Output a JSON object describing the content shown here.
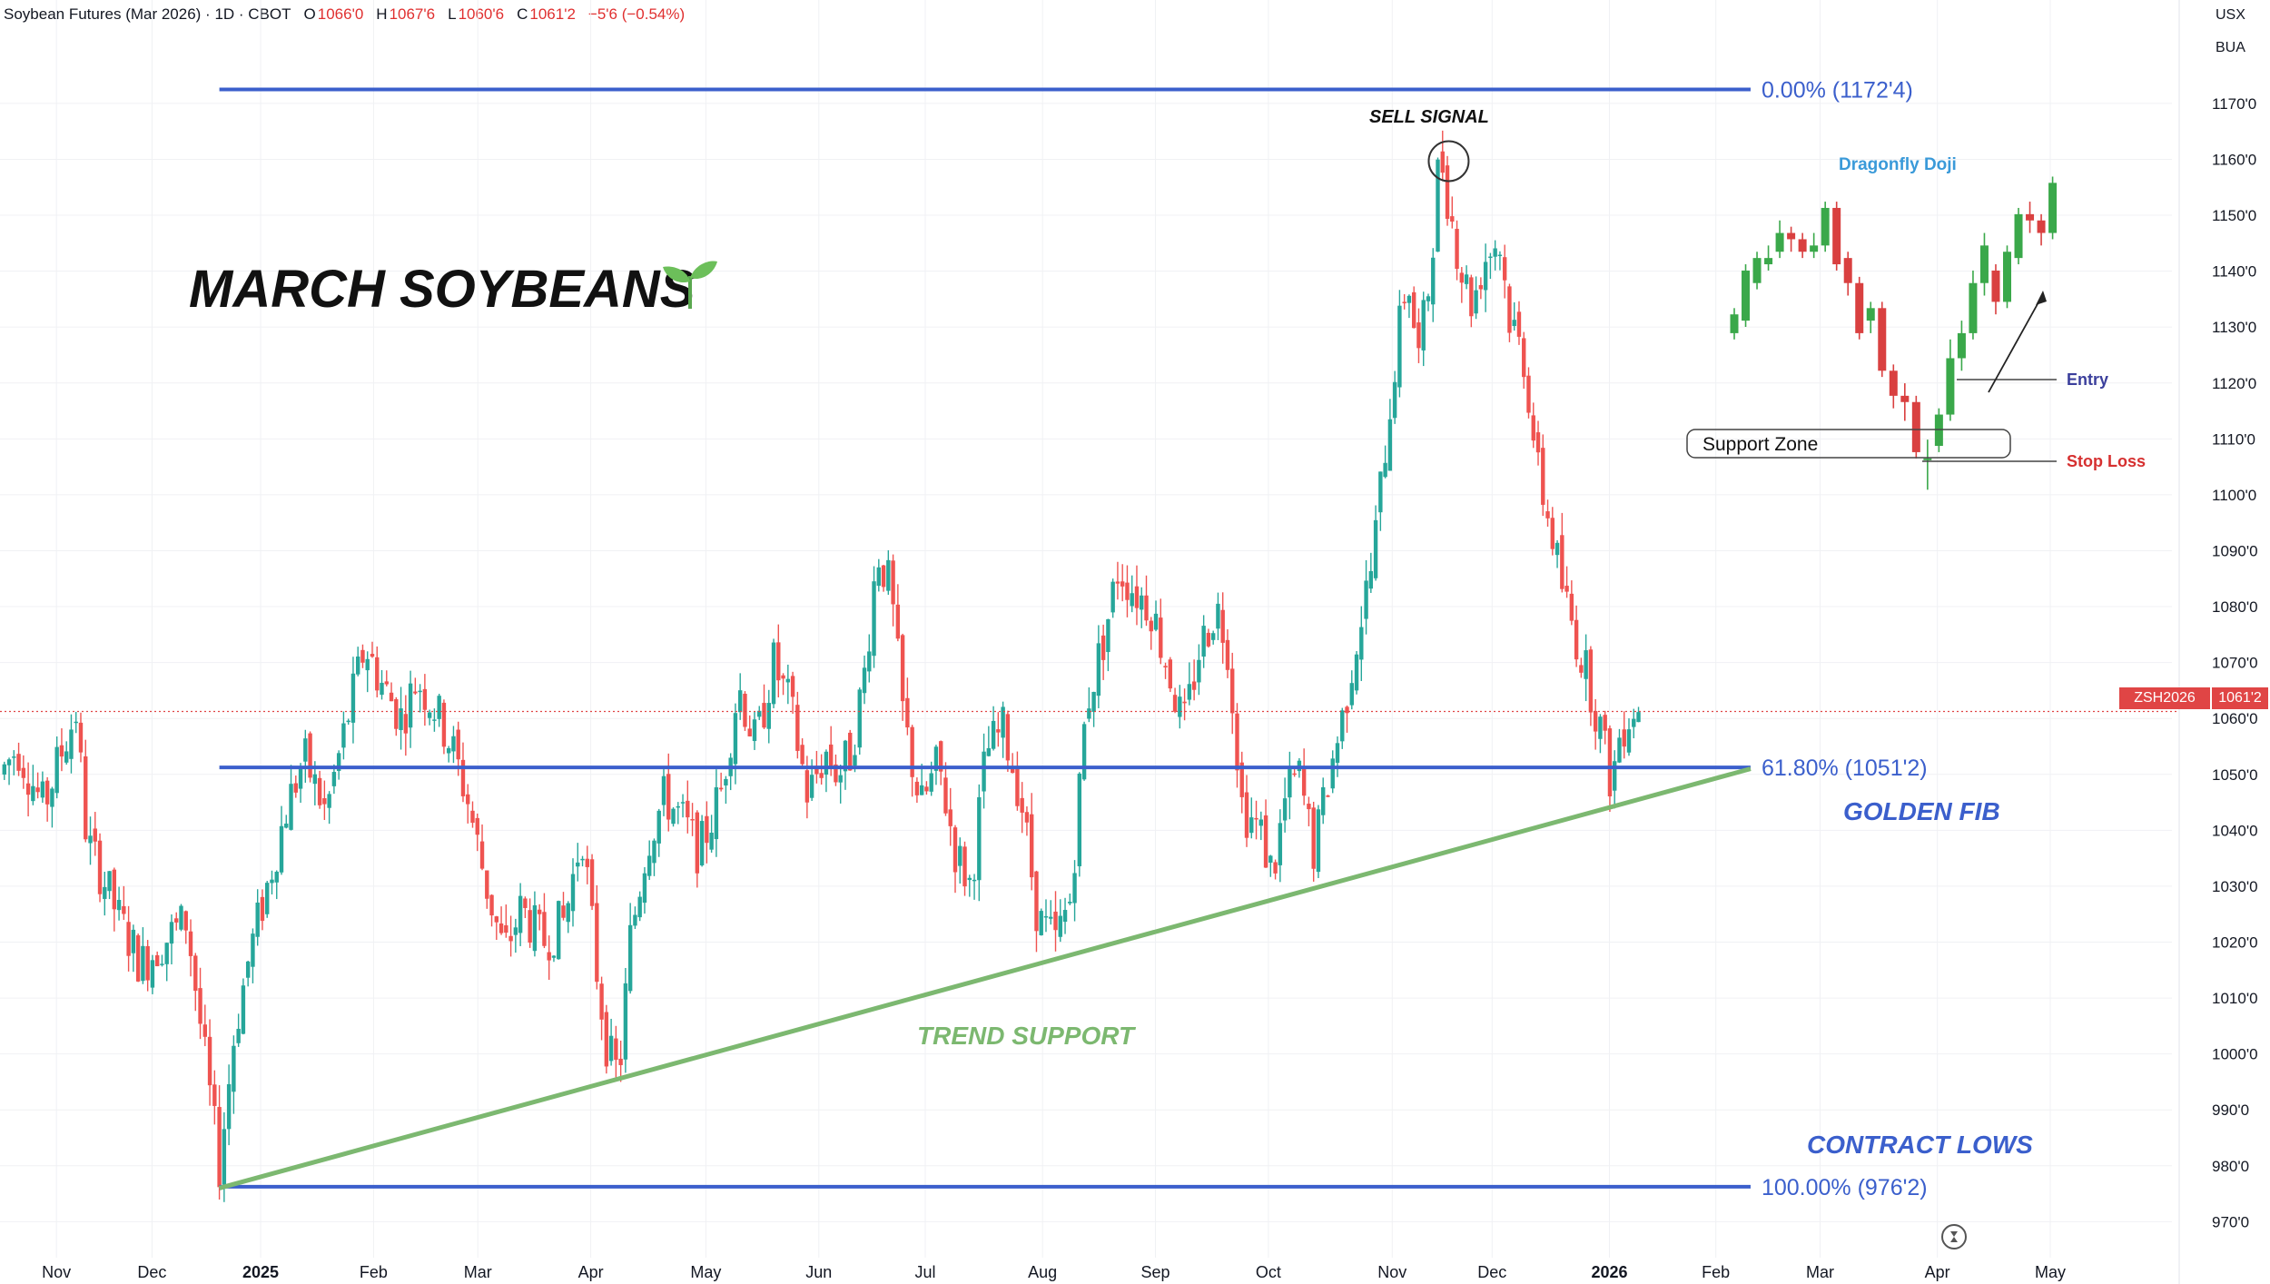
{
  "header": {
    "title": "Soybean Futures (Mar 2026) · 1D · CBOT",
    "open_label": "O",
    "open": "1066'0",
    "high_label": "H",
    "high": "1067'6",
    "low_label": "L",
    "low": "1060'6",
    "close_label": "C",
    "close": "1061'2",
    "change": "−5'6 (−0.54%)"
  },
  "corner": {
    "currency": "USX",
    "unit": "BUA"
  },
  "price_tag": {
    "symbol": "ZSH2026",
    "value": "1061'2"
  },
  "colors": {
    "up": "#26a69a",
    "down": "#ef5350",
    "fib": "#3b5fcc",
    "trend": "#7cb870",
    "text": "#131722"
  },
  "chart_data": {
    "type": "candlestick",
    "title": "MARCH SOYBEANS",
    "y_range": [
      966,
      1182
    ],
    "y_ticks": [
      970,
      980,
      990,
      1000,
      1010,
      1020,
      1030,
      1040,
      1050,
      1060,
      1070,
      1080,
      1090,
      1100,
      1110,
      1120,
      1130,
      1140,
      1150,
      1160,
      1170
    ],
    "y_tick_labels": [
      "970'0",
      "980'0",
      "990'0",
      "1000'0",
      "1010'0",
      "1020'0",
      "1030'0",
      "1040'0",
      "1050'0",
      "1060'0",
      "1070'0",
      "1080'0",
      "1090'0",
      "1100'0",
      "1110'0",
      "1120'0",
      "1130'0",
      "1140'0",
      "1150'0",
      "1160'0",
      "1170'0"
    ],
    "x_labels": [
      {
        "label": "Nov",
        "t": 0.026
      },
      {
        "label": "Dec",
        "t": 0.07
      },
      {
        "label": "2025",
        "t": 0.12,
        "bold": true
      },
      {
        "label": "Feb",
        "t": 0.172
      },
      {
        "label": "Mar",
        "t": 0.22
      },
      {
        "label": "Apr",
        "t": 0.272
      },
      {
        "label": "May",
        "t": 0.325
      },
      {
        "label": "Jun",
        "t": 0.377
      },
      {
        "label": "Jul",
        "t": 0.426
      },
      {
        "label": "Aug",
        "t": 0.48
      },
      {
        "label": "Sep",
        "t": 0.532
      },
      {
        "label": "Oct",
        "t": 0.584
      },
      {
        "label": "Nov",
        "t": 0.641
      },
      {
        "label": "Dec",
        "t": 0.687
      },
      {
        "label": "2026",
        "t": 0.741,
        "bold": true
      },
      {
        "label": "Feb",
        "t": 0.79
      },
      {
        "label": "Mar",
        "t": 0.838
      },
      {
        "label": "Apr",
        "t": 0.892
      },
      {
        "label": "May",
        "t": 0.944
      }
    ],
    "price_path": [
      [
        0.0,
        1050
      ],
      [
        0.008,
        1055
      ],
      [
        0.02,
        1044
      ],
      [
        0.03,
        1056
      ],
      [
        0.035,
        1061
      ],
      [
        0.04,
        1038
      ],
      [
        0.047,
        1032
      ],
      [
        0.055,
        1024
      ],
      [
        0.065,
        1016
      ],
      [
        0.075,
        1020
      ],
      [
        0.086,
        1024
      ],
      [
        0.094,
        1000
      ],
      [
        0.101,
        980
      ],
      [
        0.108,
        1004
      ],
      [
        0.115,
        1018
      ],
      [
        0.123,
        1030
      ],
      [
        0.132,
        1044
      ],
      [
        0.14,
        1053
      ],
      [
        0.15,
        1043
      ],
      [
        0.16,
        1060
      ],
      [
        0.168,
        1073
      ],
      [
        0.176,
        1066
      ],
      [
        0.185,
        1060
      ],
      [
        0.192,
        1067
      ],
      [
        0.2,
        1062
      ],
      [
        0.208,
        1055
      ],
      [
        0.215,
        1046
      ],
      [
        0.224,
        1030
      ],
      [
        0.232,
        1018
      ],
      [
        0.24,
        1026
      ],
      [
        0.25,
        1020
      ],
      [
        0.26,
        1024
      ],
      [
        0.268,
        1040
      ],
      [
        0.275,
        1014
      ],
      [
        0.28,
        1000
      ],
      [
        0.285,
        996
      ],
      [
        0.29,
        1020
      ],
      [
        0.298,
        1038
      ],
      [
        0.306,
        1046
      ],
      [
        0.314,
        1042
      ],
      [
        0.322,
        1036
      ],
      [
        0.332,
        1047
      ],
      [
        0.34,
        1066
      ],
      [
        0.348,
        1055
      ],
      [
        0.356,
        1070
      ],
      [
        0.364,
        1062
      ],
      [
        0.372,
        1046
      ],
      [
        0.38,
        1054
      ],
      [
        0.386,
        1050
      ],
      [
        0.392,
        1054
      ],
      [
        0.398,
        1068
      ],
      [
        0.404,
        1090
      ],
      [
        0.41,
        1083
      ],
      [
        0.416,
        1060
      ],
      [
        0.424,
        1044
      ],
      [
        0.432,
        1052
      ],
      [
        0.44,
        1036
      ],
      [
        0.447,
        1030
      ],
      [
        0.454,
        1054
      ],
      [
        0.462,
        1058
      ],
      [
        0.47,
        1046
      ],
      [
        0.478,
        1024
      ],
      [
        0.486,
        1020
      ],
      [
        0.493,
        1028
      ],
      [
        0.5,
        1062
      ],
      [
        0.508,
        1074
      ],
      [
        0.515,
        1087
      ],
      [
        0.522,
        1083
      ],
      [
        0.53,
        1080
      ],
      [
        0.537,
        1070
      ],
      [
        0.545,
        1058
      ],
      [
        0.552,
        1072
      ],
      [
        0.56,
        1080
      ],
      [
        0.565,
        1074
      ],
      [
        0.572,
        1044
      ],
      [
        0.58,
        1040
      ],
      [
        0.586,
        1032
      ],
      [
        0.592,
        1046
      ],
      [
        0.598,
        1050
      ],
      [
        0.605,
        1036
      ],
      [
        0.612,
        1050
      ],
      [
        0.618,
        1060
      ],
      [
        0.625,
        1075
      ],
      [
        0.632,
        1088
      ],
      [
        0.637,
        1106
      ],
      [
        0.643,
        1126
      ],
      [
        0.648,
        1140
      ],
      [
        0.653,
        1124
      ],
      [
        0.658,
        1138
      ],
      [
        0.663,
        1162
      ],
      [
        0.668,
        1150
      ],
      [
        0.673,
        1140
      ],
      [
        0.678,
        1134
      ],
      [
        0.683,
        1142
      ],
      [
        0.69,
        1146
      ],
      [
        0.695,
        1132
      ],
      [
        0.702,
        1124
      ],
      [
        0.708,
        1104
      ],
      [
        0.714,
        1094
      ],
      [
        0.72,
        1082
      ],
      [
        0.726,
        1074
      ],
      [
        0.732,
        1066
      ],
      [
        0.737,
        1058
      ],
      [
        0.742,
        1048
      ],
      [
        0.746,
        1058
      ],
      [
        0.752,
        1062
      ],
      [
        0.756,
        1061
      ]
    ],
    "lines": [
      {
        "name": "fib-0",
        "value": 1172.5,
        "t_start": 0.101,
        "t_end": 0.806,
        "label": "0.00% (1172'4)"
      },
      {
        "name": "fib-618",
        "value": 1051.25,
        "t_start": 0.101,
        "t_end": 0.806,
        "label": "61.80% (1051'2)"
      },
      {
        "name": "fib-100",
        "value": 976.25,
        "t_start": 0.101,
        "t_end": 0.806,
        "label": "100.00% (976'2)"
      }
    ],
    "trendline": {
      "from": [
        0.101,
        976
      ],
      "to": [
        0.806,
        1051
      ],
      "label": "TREND SUPPORT"
    },
    "current_price": 1061.25,
    "annotations": [
      {
        "name": "golden-fib",
        "text": "GOLDEN FIB"
      },
      {
        "name": "contract-lows",
        "text": "CONTRACT LOWS"
      },
      {
        "name": "sell-signal",
        "text": "SELL SIGNAL",
        "t": 0.667,
        "value": 1160
      }
    ]
  },
  "inset": {
    "title": "Dragonfly Doji",
    "support_label": "Support  Zone",
    "entry_label": "Entry",
    "stop_label": "Stop Loss",
    "candles": [
      [
        0.0,
        1128,
        1131,
        1127,
        1132
      ],
      [
        0.047,
        1130,
        1138,
        1129,
        1139
      ],
      [
        0.094,
        1136,
        1140,
        1135,
        1141
      ],
      [
        0.141,
        1139,
        1140,
        1138,
        1142
      ],
      [
        0.188,
        1141,
        1144,
        1140,
        1146
      ],
      [
        0.235,
        1144,
        1143,
        1141,
        1145
      ],
      [
        0.282,
        1143,
        1141,
        1140,
        1144
      ],
      [
        0.329,
        1141,
        1142,
        1140,
        1144
      ],
      [
        0.376,
        1142,
        1148,
        1141,
        1149
      ],
      [
        0.423,
        1148,
        1139,
        1138,
        1149
      ],
      [
        0.47,
        1140,
        1136,
        1134,
        1141
      ],
      [
        0.517,
        1136,
        1128,
        1127,
        1137
      ],
      [
        0.564,
        1130,
        1132,
        1128,
        1133
      ],
      [
        0.611,
        1132,
        1122,
        1121,
        1133
      ],
      [
        0.658,
        1122,
        1118,
        1116,
        1123
      ],
      [
        0.705,
        1118,
        1117,
        1114,
        1120
      ],
      [
        0.752,
        1117,
        1109,
        1108,
        1118
      ],
      [
        0.799,
        1108,
        1108,
        1103,
        1111
      ],
      [
        0.846,
        1110,
        1115,
        1109,
        1116
      ],
      [
        0.893,
        1115,
        1124,
        1114,
        1127
      ],
      [
        0.94,
        1124,
        1128,
        1122,
        1130
      ],
      [
        0.987,
        1128,
        1136,
        1127,
        1138
      ],
      [
        1.034,
        1136,
        1142,
        1134,
        1144
      ],
      [
        1.081,
        1138,
        1133,
        1131,
        1139
      ],
      [
        1.128,
        1133,
        1141,
        1132,
        1142
      ],
      [
        1.175,
        1140,
        1147,
        1139,
        1148
      ],
      [
        1.222,
        1147,
        1146,
        1144,
        1149
      ],
      [
        1.269,
        1146,
        1144,
        1142,
        1147
      ],
      [
        1.316,
        1144,
        1152,
        1143,
        1153
      ]
    ]
  }
}
